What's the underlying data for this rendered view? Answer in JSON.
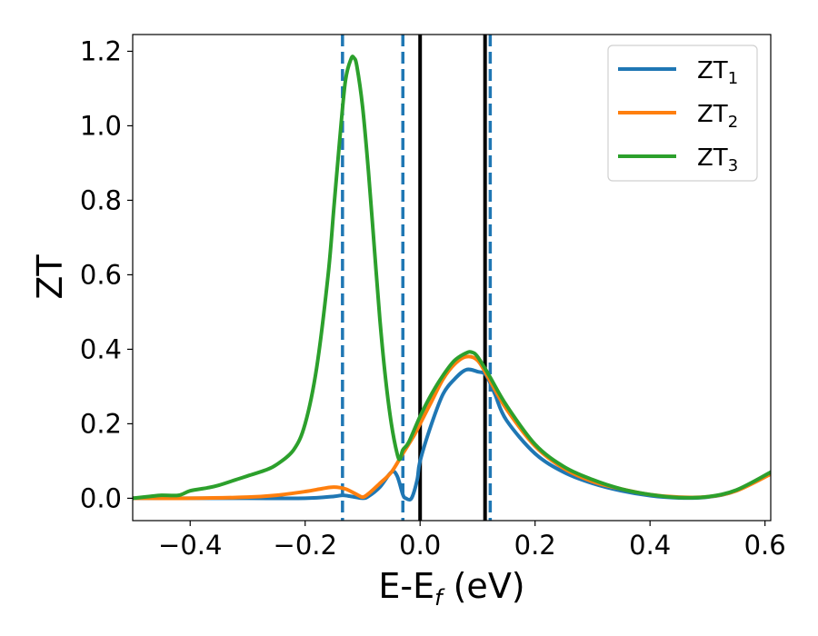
{
  "chart_data": {
    "type": "line",
    "xlabel": {
      "main": "E-E",
      "sub": "f",
      "unit": " (eV)"
    },
    "ylabel": "ZT",
    "xlim": [
      -0.5,
      0.61
    ],
    "ylim": [
      -0.06,
      1.245
    ],
    "xticks": [
      -0.4,
      -0.2,
      0.0,
      0.2,
      0.4,
      0.6
    ],
    "xtick_labels": [
      "−0.4",
      "−0.2",
      "0.0",
      "0.2",
      "0.4",
      "0.6"
    ],
    "yticks": [
      0.0,
      0.2,
      0.4,
      0.6,
      0.8,
      1.0,
      1.2
    ],
    "ytick_labels": [
      "0.0",
      "0.2",
      "0.4",
      "0.6",
      "0.8",
      "1.0",
      "1.2"
    ],
    "grid": false,
    "legend_position": "top-right",
    "series": [
      {
        "name": "ZT",
        "subscript": "1",
        "color": "#1f77b4",
        "x": [
          -0.5,
          -0.4,
          -0.3,
          -0.2,
          -0.15,
          -0.135,
          -0.12,
          -0.1,
          -0.09,
          -0.07,
          -0.05,
          -0.04,
          -0.03,
          -0.025,
          -0.015,
          -0.005,
          0.0,
          0.02,
          0.04,
          0.06,
          0.08,
          0.1,
          0.115,
          0.13,
          0.15,
          0.2,
          0.25,
          0.3,
          0.35,
          0.4,
          0.45,
          0.5,
          0.55,
          0.61
        ],
        "y": [
          0.0,
          0.0,
          0.0,
          0.0,
          0.005,
          0.008,
          0.005,
          0.0,
          0.005,
          0.03,
          0.07,
          0.06,
          0.01,
          0.0,
          0.0,
          0.05,
          0.1,
          0.2,
          0.28,
          0.32,
          0.345,
          0.34,
          0.33,
          0.28,
          0.21,
          0.12,
          0.07,
          0.04,
          0.02,
          0.007,
          0.001,
          0.003,
          0.02,
          0.07
        ]
      },
      {
        "name": "ZT",
        "subscript": "2",
        "color": "#ff7f0e",
        "x": [
          -0.5,
          -0.4,
          -0.3,
          -0.25,
          -0.2,
          -0.17,
          -0.15,
          -0.13,
          -0.11,
          -0.1,
          -0.09,
          -0.07,
          -0.05,
          -0.03,
          -0.01,
          0.0,
          0.02,
          0.04,
          0.06,
          0.08,
          0.1,
          0.12,
          0.15,
          0.2,
          0.25,
          0.3,
          0.35,
          0.4,
          0.45,
          0.5,
          0.55,
          0.61
        ],
        "y": [
          0.0,
          0.0,
          0.003,
          0.008,
          0.018,
          0.026,
          0.03,
          0.025,
          0.01,
          0.003,
          0.012,
          0.04,
          0.07,
          0.12,
          0.17,
          0.2,
          0.26,
          0.32,
          0.36,
          0.38,
          0.37,
          0.32,
          0.24,
          0.14,
          0.08,
          0.045,
          0.025,
          0.01,
          0.003,
          0.004,
          0.02,
          0.065
        ]
      },
      {
        "name": "ZT",
        "subscript": "3",
        "color": "#2ca02c",
        "x": [
          -0.5,
          -0.47,
          -0.45,
          -0.42,
          -0.4,
          -0.37,
          -0.35,
          -0.32,
          -0.3,
          -0.27,
          -0.25,
          -0.22,
          -0.2,
          -0.18,
          -0.16,
          -0.15,
          -0.14,
          -0.13,
          -0.12,
          -0.115,
          -0.11,
          -0.1,
          -0.09,
          -0.08,
          -0.07,
          -0.06,
          -0.05,
          -0.04,
          -0.035,
          -0.03,
          -0.02,
          0.0,
          0.02,
          0.04,
          0.06,
          0.08,
          0.09,
          0.1,
          0.12,
          0.15,
          0.2,
          0.25,
          0.3,
          0.35,
          0.4,
          0.45,
          0.5,
          0.55,
          0.61
        ],
        "y": [
          0.0,
          0.005,
          0.008,
          0.008,
          0.02,
          0.028,
          0.035,
          0.05,
          0.06,
          0.075,
          0.09,
          0.13,
          0.2,
          0.35,
          0.6,
          0.78,
          0.96,
          1.12,
          1.18,
          1.182,
          1.16,
          1.05,
          0.88,
          0.68,
          0.48,
          0.32,
          0.2,
          0.12,
          0.105,
          0.13,
          0.15,
          0.22,
          0.28,
          0.33,
          0.37,
          0.39,
          0.392,
          0.38,
          0.33,
          0.25,
          0.145,
          0.085,
          0.05,
          0.025,
          0.01,
          0.002,
          0.004,
          0.022,
          0.07
        ]
      }
    ],
    "vlines": [
      {
        "x": -0.135,
        "style": "dashed",
        "color": "#1f77b4"
      },
      {
        "x": -0.03,
        "style": "dashed",
        "color": "#1f77b4"
      },
      {
        "x": 0.0,
        "style": "solid",
        "color": "#000000"
      },
      {
        "x": 0.113,
        "style": "solid",
        "color": "#000000"
      },
      {
        "x": 0.122,
        "style": "dashed",
        "color": "#1f77b4"
      }
    ]
  }
}
